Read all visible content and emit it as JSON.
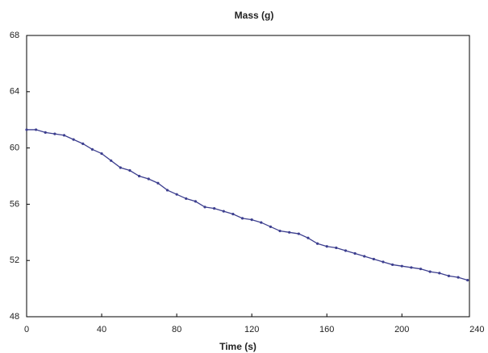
{
  "chart_data": {
    "type": "line",
    "title": "Mass (g)",
    "x_label": "Time (s)",
    "x": [
      0,
      5,
      10,
      15,
      20,
      25,
      30,
      35,
      40,
      45,
      50,
      55,
      60,
      65,
      70,
      75,
      80,
      85,
      90,
      95,
      100,
      105,
      110,
      115,
      120,
      125,
      130,
      135,
      140,
      145,
      150,
      155,
      160,
      165,
      170,
      175,
      180,
      185,
      190,
      195,
      200,
      205,
      210,
      215,
      220,
      225,
      230,
      235
    ],
    "series": [
      {
        "name": "Mass",
        "color": "#3d3f8f",
        "values": [
          61.3,
          61.3,
          61.1,
          61.0,
          60.9,
          60.6,
          60.3,
          59.9,
          59.6,
          59.1,
          58.6,
          58.4,
          58.0,
          57.8,
          57.5,
          57.0,
          56.7,
          56.4,
          56.2,
          55.8,
          55.7,
          55.5,
          55.3,
          55.0,
          54.9,
          54.7,
          54.4,
          54.1,
          54.0,
          53.9,
          53.6,
          53.2,
          53.0,
          52.9,
          52.7,
          52.5,
          52.3,
          52.1,
          51.9,
          51.7,
          51.6,
          51.5,
          51.4,
          51.2,
          51.1,
          50.9,
          50.8,
          50.6
        ]
      }
    ],
    "xlim": [
      0,
      236
    ],
    "xticks": [
      0,
      40,
      80,
      120,
      160,
      200,
      240
    ],
    "ylim": [
      48,
      68
    ],
    "yticks": [
      48,
      52,
      56,
      60,
      64,
      68
    ]
  }
}
